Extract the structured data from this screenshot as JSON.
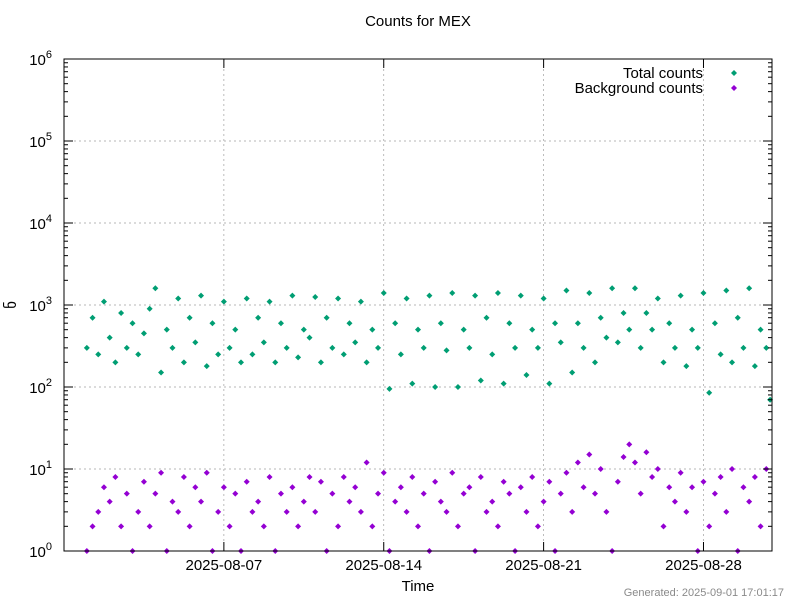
{
  "chart_data": {
    "type": "scatter",
    "title": "Counts for MEX",
    "xlabel": "Time",
    "ylabel": "ნ",
    "yscale": "log",
    "ylim": [
      1,
      1000000
    ],
    "xlim": [
      "2025-07-31",
      "2025-08-31"
    ],
    "x_ticks": [
      "2025-08-07",
      "2025-08-14",
      "2025-08-21",
      "2025-08-28"
    ],
    "y_ticks": [
      {
        "base": "10",
        "exp": "0",
        "value": 1
      },
      {
        "base": "10",
        "exp": "1",
        "value": 10
      },
      {
        "base": "10",
        "exp": "2",
        "value": 100
      },
      {
        "base": "10",
        "exp": "3",
        "value": 1000
      },
      {
        "base": "10",
        "exp": "4",
        "value": 10000
      },
      {
        "base": "10",
        "exp": "5",
        "value": 100000
      },
      {
        "base": "10",
        "exp": "6",
        "value": 1000000
      }
    ],
    "grid": true,
    "legend_position": "top-right",
    "series": [
      {
        "name": "Total counts",
        "color": "#009e73",
        "marker": "diamond",
        "points": [
          [
            "2025-08-01T00:00",
            300
          ],
          [
            "2025-08-01T06:00",
            700
          ],
          [
            "2025-08-01T12:00",
            250
          ],
          [
            "2025-08-01T18:00",
            1100
          ],
          [
            "2025-08-02T00:00",
            400
          ],
          [
            "2025-08-02T06:00",
            200
          ],
          [
            "2025-08-02T12:00",
            800
          ],
          [
            "2025-08-02T18:00",
            300
          ],
          [
            "2025-08-03T00:00",
            600
          ],
          [
            "2025-08-03T06:00",
            250
          ],
          [
            "2025-08-03T12:00",
            450
          ],
          [
            "2025-08-03T18:00",
            900
          ],
          [
            "2025-08-04T00:00",
            1600
          ],
          [
            "2025-08-04T06:00",
            150
          ],
          [
            "2025-08-04T12:00",
            500
          ],
          [
            "2025-08-04T18:00",
            300
          ],
          [
            "2025-08-05T00:00",
            1200
          ],
          [
            "2025-08-05T06:00",
            200
          ],
          [
            "2025-08-05T12:00",
            700
          ],
          [
            "2025-08-05T18:00",
            350
          ],
          [
            "2025-08-06T00:00",
            1300
          ],
          [
            "2025-08-06T06:00",
            180
          ],
          [
            "2025-08-06T12:00",
            600
          ],
          [
            "2025-08-06T18:00",
            250
          ],
          [
            "2025-08-07T00:00",
            1100
          ],
          [
            "2025-08-07T06:00",
            300
          ],
          [
            "2025-08-07T12:00",
            500
          ],
          [
            "2025-08-07T18:00",
            200
          ],
          [
            "2025-08-08T00:00",
            1200
          ],
          [
            "2025-08-08T06:00",
            250
          ],
          [
            "2025-08-08T12:00",
            700
          ],
          [
            "2025-08-08T18:00",
            350
          ],
          [
            "2025-08-09T00:00",
            1100
          ],
          [
            "2025-08-09T06:00",
            200
          ],
          [
            "2025-08-09T12:00",
            600
          ],
          [
            "2025-08-09T18:00",
            300
          ],
          [
            "2025-08-10T00:00",
            1300
          ],
          [
            "2025-08-10T06:00",
            230
          ],
          [
            "2025-08-10T12:00",
            500
          ],
          [
            "2025-08-10T18:00",
            400
          ],
          [
            "2025-08-11T00:00",
            1250
          ],
          [
            "2025-08-11T06:00",
            200
          ],
          [
            "2025-08-11T12:00",
            700
          ],
          [
            "2025-08-11T18:00",
            300
          ],
          [
            "2025-08-12T00:00",
            1200
          ],
          [
            "2025-08-12T06:00",
            250
          ],
          [
            "2025-08-12T12:00",
            600
          ],
          [
            "2025-08-12T18:00",
            350
          ],
          [
            "2025-08-13T00:00",
            1100
          ],
          [
            "2025-08-13T06:00",
            200
          ],
          [
            "2025-08-13T12:00",
            500
          ],
          [
            "2025-08-13T18:00",
            300
          ],
          [
            "2025-08-14T00:00",
            1400
          ],
          [
            "2025-08-14T06:00",
            95
          ],
          [
            "2025-08-14T12:00",
            600
          ],
          [
            "2025-08-14T18:00",
            250
          ],
          [
            "2025-08-15T00:00",
            1200
          ],
          [
            "2025-08-15T06:00",
            110
          ],
          [
            "2025-08-15T12:00",
            500
          ],
          [
            "2025-08-15T18:00",
            300
          ],
          [
            "2025-08-16T00:00",
            1300
          ],
          [
            "2025-08-16T06:00",
            100
          ],
          [
            "2025-08-16T12:00",
            600
          ],
          [
            "2025-08-16T18:00",
            280
          ],
          [
            "2025-08-17T00:00",
            1400
          ],
          [
            "2025-08-17T06:00",
            100
          ],
          [
            "2025-08-17T12:00",
            500
          ],
          [
            "2025-08-17T18:00",
            300
          ],
          [
            "2025-08-18T00:00",
            1300
          ],
          [
            "2025-08-18T06:00",
            120
          ],
          [
            "2025-08-18T12:00",
            700
          ],
          [
            "2025-08-18T18:00",
            250
          ],
          [
            "2025-08-19T00:00",
            1400
          ],
          [
            "2025-08-19T06:00",
            110
          ],
          [
            "2025-08-19T12:00",
            600
          ],
          [
            "2025-08-19T18:00",
            300
          ],
          [
            "2025-08-20T00:00",
            1300
          ],
          [
            "2025-08-20T06:00",
            140
          ],
          [
            "2025-08-20T12:00",
            500
          ],
          [
            "2025-08-20T18:00",
            300
          ],
          [
            "2025-08-21T00:00",
            1200
          ],
          [
            "2025-08-21T06:00",
            110
          ],
          [
            "2025-08-21T12:00",
            600
          ],
          [
            "2025-08-21T18:00",
            350
          ],
          [
            "2025-08-22T00:00",
            1500
          ],
          [
            "2025-08-22T06:00",
            150
          ],
          [
            "2025-08-22T12:00",
            600
          ],
          [
            "2025-08-22T18:00",
            300
          ],
          [
            "2025-08-23T00:00",
            1400
          ],
          [
            "2025-08-23T06:00",
            200
          ],
          [
            "2025-08-23T12:00",
            700
          ],
          [
            "2025-08-23T18:00",
            400
          ],
          [
            "2025-08-24T00:00",
            1600
          ],
          [
            "2025-08-24T06:00",
            350
          ],
          [
            "2025-08-24T12:00",
            800
          ],
          [
            "2025-08-24T18:00",
            500
          ],
          [
            "2025-08-25T00:00",
            1600
          ],
          [
            "2025-08-25T06:00",
            300
          ],
          [
            "2025-08-25T12:00",
            800
          ],
          [
            "2025-08-25T18:00",
            500
          ],
          [
            "2025-08-26T00:00",
            1200
          ],
          [
            "2025-08-26T06:00",
            200
          ],
          [
            "2025-08-26T12:00",
            600
          ],
          [
            "2025-08-26T18:00",
            300
          ],
          [
            "2025-08-27T00:00",
            1300
          ],
          [
            "2025-08-27T06:00",
            180
          ],
          [
            "2025-08-27T12:00",
            500
          ],
          [
            "2025-08-27T18:00",
            300
          ],
          [
            "2025-08-28T00:00",
            1400
          ],
          [
            "2025-08-28T06:00",
            85
          ],
          [
            "2025-08-28T12:00",
            600
          ],
          [
            "2025-08-28T18:00",
            250
          ],
          [
            "2025-08-29T00:00",
            1500
          ],
          [
            "2025-08-29T06:00",
            200
          ],
          [
            "2025-08-29T12:00",
            700
          ],
          [
            "2025-08-29T18:00",
            300
          ],
          [
            "2025-08-30T00:00",
            1600
          ],
          [
            "2025-08-30T06:00",
            180
          ],
          [
            "2025-08-30T12:00",
            500
          ],
          [
            "2025-08-30T18:00",
            300
          ],
          [
            "2025-08-30T22:00",
            70
          ]
        ]
      },
      {
        "name": "Background counts",
        "color": "#9400d3",
        "marker": "diamond",
        "points": [
          [
            "2025-08-01T00:00",
            1
          ],
          [
            "2025-08-01T06:00",
            2
          ],
          [
            "2025-08-01T12:00",
            3
          ],
          [
            "2025-08-01T18:00",
            6
          ],
          [
            "2025-08-02T00:00",
            4
          ],
          [
            "2025-08-02T06:00",
            8
          ],
          [
            "2025-08-02T12:00",
            2
          ],
          [
            "2025-08-02T18:00",
            5
          ],
          [
            "2025-08-03T00:00",
            1
          ],
          [
            "2025-08-03T06:00",
            3
          ],
          [
            "2025-08-03T12:00",
            7
          ],
          [
            "2025-08-03T18:00",
            2
          ],
          [
            "2025-08-04T00:00",
            5
          ],
          [
            "2025-08-04T06:00",
            9
          ],
          [
            "2025-08-04T12:00",
            1
          ],
          [
            "2025-08-04T18:00",
            4
          ],
          [
            "2025-08-05T00:00",
            3
          ],
          [
            "2025-08-05T06:00",
            8
          ],
          [
            "2025-08-05T12:00",
            2
          ],
          [
            "2025-08-05T18:00",
            6
          ],
          [
            "2025-08-06T00:00",
            4
          ],
          [
            "2025-08-06T06:00",
            9
          ],
          [
            "2025-08-06T12:00",
            1
          ],
          [
            "2025-08-06T18:00",
            3
          ],
          [
            "2025-08-07T00:00",
            6
          ],
          [
            "2025-08-07T06:00",
            2
          ],
          [
            "2025-08-07T12:00",
            5
          ],
          [
            "2025-08-07T18:00",
            1
          ],
          [
            "2025-08-08T00:00",
            7
          ],
          [
            "2025-08-08T06:00",
            3
          ],
          [
            "2025-08-08T12:00",
            4
          ],
          [
            "2025-08-08T18:00",
            2
          ],
          [
            "2025-08-09T00:00",
            8
          ],
          [
            "2025-08-09T06:00",
            1
          ],
          [
            "2025-08-09T12:00",
            5
          ],
          [
            "2025-08-09T18:00",
            3
          ],
          [
            "2025-08-10T00:00",
            6
          ],
          [
            "2025-08-10T06:00",
            2
          ],
          [
            "2025-08-10T12:00",
            4
          ],
          [
            "2025-08-10T18:00",
            8
          ],
          [
            "2025-08-11T00:00",
            3
          ],
          [
            "2025-08-11T06:00",
            7
          ],
          [
            "2025-08-11T12:00",
            1
          ],
          [
            "2025-08-11T18:00",
            5
          ],
          [
            "2025-08-12T00:00",
            2
          ],
          [
            "2025-08-12T06:00",
            8
          ],
          [
            "2025-08-12T12:00",
            4
          ],
          [
            "2025-08-12T18:00",
            6
          ],
          [
            "2025-08-13T00:00",
            3
          ],
          [
            "2025-08-13T06:00",
            12
          ],
          [
            "2025-08-13T12:00",
            2
          ],
          [
            "2025-08-13T18:00",
            5
          ],
          [
            "2025-08-14T00:00",
            9
          ],
          [
            "2025-08-14T06:00",
            1
          ],
          [
            "2025-08-14T12:00",
            4
          ],
          [
            "2025-08-14T18:00",
            6
          ],
          [
            "2025-08-15T00:00",
            3
          ],
          [
            "2025-08-15T06:00",
            8
          ],
          [
            "2025-08-15T12:00",
            2
          ],
          [
            "2025-08-15T18:00",
            5
          ],
          [
            "2025-08-16T00:00",
            1
          ],
          [
            "2025-08-16T06:00",
            7
          ],
          [
            "2025-08-16T12:00",
            4
          ],
          [
            "2025-08-16T18:00",
            3
          ],
          [
            "2025-08-17T00:00",
            9
          ],
          [
            "2025-08-17T06:00",
            2
          ],
          [
            "2025-08-17T12:00",
            5
          ],
          [
            "2025-08-17T18:00",
            6
          ],
          [
            "2025-08-18T00:00",
            1
          ],
          [
            "2025-08-18T06:00",
            8
          ],
          [
            "2025-08-18T12:00",
            3
          ],
          [
            "2025-08-18T18:00",
            4
          ],
          [
            "2025-08-19T00:00",
            2
          ],
          [
            "2025-08-19T06:00",
            7
          ],
          [
            "2025-08-19T12:00",
            5
          ],
          [
            "2025-08-19T18:00",
            1
          ],
          [
            "2025-08-20T00:00",
            6
          ],
          [
            "2025-08-20T06:00",
            3
          ],
          [
            "2025-08-20T12:00",
            8
          ],
          [
            "2025-08-20T18:00",
            2
          ],
          [
            "2025-08-21T00:00",
            4
          ],
          [
            "2025-08-21T06:00",
            7
          ],
          [
            "2025-08-21T12:00",
            1
          ],
          [
            "2025-08-21T18:00",
            5
          ],
          [
            "2025-08-22T00:00",
            9
          ],
          [
            "2025-08-22T06:00",
            3
          ],
          [
            "2025-08-22T12:00",
            12
          ],
          [
            "2025-08-22T18:00",
            6
          ],
          [
            "2025-08-23T00:00",
            15
          ],
          [
            "2025-08-23T06:00",
            5
          ],
          [
            "2025-08-23T12:00",
            10
          ],
          [
            "2025-08-23T18:00",
            3
          ],
          [
            "2025-08-24T00:00",
            1
          ],
          [
            "2025-08-24T06:00",
            7
          ],
          [
            "2025-08-24T12:00",
            14
          ],
          [
            "2025-08-24T18:00",
            20
          ],
          [
            "2025-08-25T00:00",
            12
          ],
          [
            "2025-08-25T06:00",
            5
          ],
          [
            "2025-08-25T12:00",
            16
          ],
          [
            "2025-08-25T18:00",
            8
          ],
          [
            "2025-08-26T00:00",
            10
          ],
          [
            "2025-08-26T06:00",
            2
          ],
          [
            "2025-08-26T12:00",
            6
          ],
          [
            "2025-08-26T18:00",
            4
          ],
          [
            "2025-08-27T00:00",
            9
          ],
          [
            "2025-08-27T06:00",
            3
          ],
          [
            "2025-08-27T12:00",
            6
          ],
          [
            "2025-08-27T18:00",
            1
          ],
          [
            "2025-08-28T00:00",
            7
          ],
          [
            "2025-08-28T06:00",
            2
          ],
          [
            "2025-08-28T12:00",
            5
          ],
          [
            "2025-08-28T18:00",
            8
          ],
          [
            "2025-08-29T00:00",
            3
          ],
          [
            "2025-08-29T06:00",
            10
          ],
          [
            "2025-08-29T12:00",
            1
          ],
          [
            "2025-08-29T18:00",
            6
          ],
          [
            "2025-08-30T00:00",
            4
          ],
          [
            "2025-08-30T06:00",
            8
          ],
          [
            "2025-08-30T12:00",
            2
          ],
          [
            "2025-08-30T18:00",
            10
          ]
        ]
      }
    ]
  },
  "footer": {
    "generated": "Generated: 2025-09-01 17:01:17"
  }
}
